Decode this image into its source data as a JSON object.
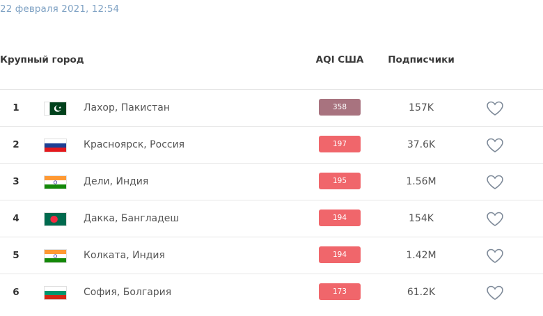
{
  "timestamp": "22 февраля 2021, 12:54",
  "headers": {
    "city": "Крупный город",
    "aqi": "AQI США",
    "subscribers": "Подписчики"
  },
  "rows": [
    {
      "rank": "1",
      "city": "Лахор, Пакистан",
      "aqi": "358",
      "aqi_color": "#a8737f",
      "subscribers": "157K",
      "flag": "pakistan-flag"
    },
    {
      "rank": "2",
      "city": "Красноярск, Россия",
      "aqi": "197",
      "aqi_color": "#f0666b",
      "subscribers": "37.6K",
      "flag": "russia-flag"
    },
    {
      "rank": "3",
      "city": "Дели, Индия",
      "aqi": "195",
      "aqi_color": "#f0666b",
      "subscribers": "1.56M",
      "flag": "india-flag"
    },
    {
      "rank": "4",
      "city": "Дакка, Бангладеш",
      "aqi": "194",
      "aqi_color": "#f0666b",
      "subscribers": "154K",
      "flag": "bangladesh-flag"
    },
    {
      "rank": "5",
      "city": "Колката, Индия",
      "aqi": "194",
      "aqi_color": "#f0666b",
      "subscribers": "1.42M",
      "flag": "india-flag"
    },
    {
      "rank": "6",
      "city": "София, Болгария",
      "aqi": "173",
      "aqi_color": "#f0666b",
      "subscribers": "61.2K",
      "flag": "bulgaria-flag"
    }
  ]
}
